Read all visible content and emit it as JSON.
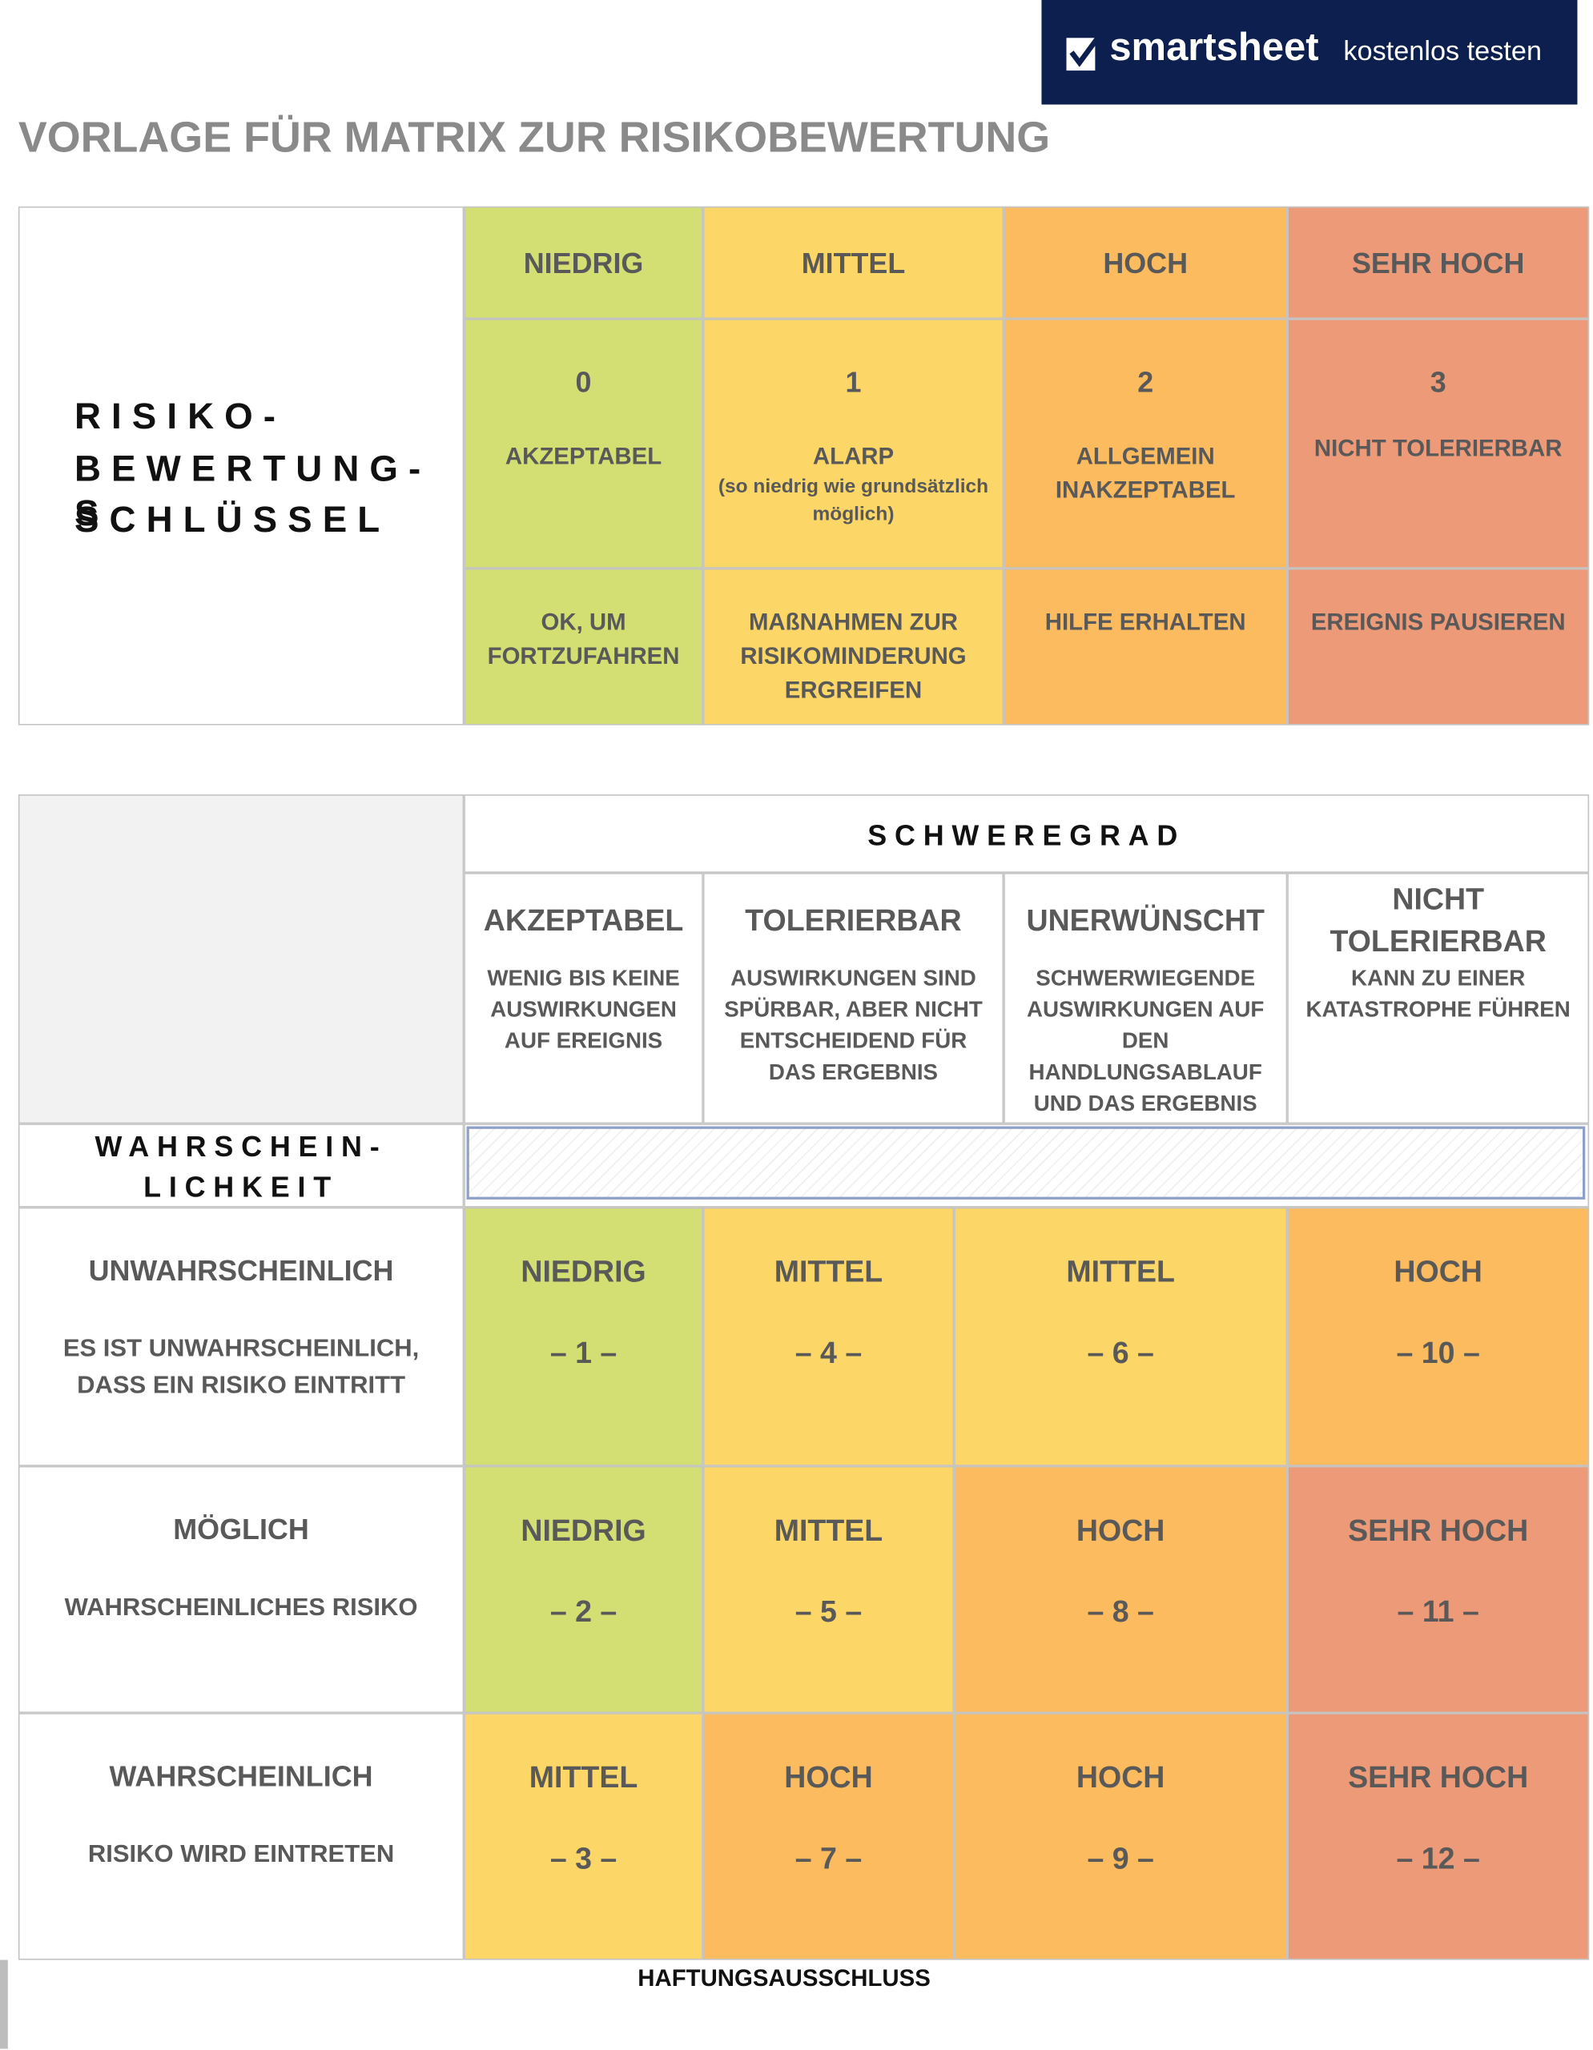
{
  "header": {
    "logo": {
      "brand": "smartsheet",
      "cta": "kostenlos testen"
    },
    "title": "VORLAGE FÜR MATRIX ZUR RISIKOBEWERTUNG"
  },
  "key_table": {
    "title_lines": [
      "RISIKO-",
      "BEWERTUNG-S",
      "SCHLÜSSEL"
    ],
    "columns": [
      {
        "level": "NIEDRIG",
        "score": 0,
        "rating": "AKZEPTABEL",
        "action": "OK, UM FORTZUFAHREN"
      },
      {
        "level": "MITTEL",
        "score": 1,
        "rating": "ALARP",
        "note": "(so niedrig wie grundsätzlich möglich)",
        "action": "MAßNAHMEN ZUR RISIKOMINDERUNG ERGREIFEN"
      },
      {
        "level": "HOCH",
        "score": 2,
        "rating": "ALLGEMEIN INAKZEPTABEL",
        "action": "HILFE ERHALTEN"
      },
      {
        "level": "SEHR HOCH",
        "score": 3,
        "rating": "NICHT TOLERIERBAR",
        "action": "EREIGNIS PAUSIEREN"
      }
    ]
  },
  "matrix": {
    "severity_title": "SCHWEREGRAD",
    "severity": [
      {
        "name": "AKZEPTABEL",
        "description": "WENIG BIS KEINE AUSWIRKUNGEN AUF EREIGNIS"
      },
      {
        "name": "TOLERIERBAR",
        "description": "AUSWIRKUNGEN SIND SPÜRBAR, ABER NICHT ENTSCHEIDEND FÜR DAS ERGEBNIS"
      },
      {
        "name": "UNERWÜNSCHT",
        "description": "SCHWERWIEGENDE AUSWIRKUNGEN AUF DEN HANDLUNGSABLAUF UND DAS ERGEBNIS"
      },
      {
        "name": "NICHT TOLERIERBAR",
        "description": "KANN ZU EINER KATASTROPHE FÜHREN"
      }
    ],
    "likelihood_title_lines": [
      "WAHRSCHEIN-",
      "LICHKEIT"
    ],
    "rows": [
      {
        "name": "UNWAHRSCHEINLICH",
        "description": "ES IST UNWAHRSCHEINLICH, DASS EIN RISIKO EINTRITT",
        "cells": [
          {
            "label": "NIEDRIG",
            "score": "– 1 –"
          },
          {
            "label": "MITTEL",
            "score": "– 4 –"
          },
          {
            "label": "MITTEL",
            "score": "– 6 –"
          },
          {
            "label": "HOCH",
            "score": "– 10 –"
          }
        ]
      },
      {
        "name": "MÖGLICH",
        "description": "WAHRSCHEINLICHES RISIKO",
        "cells": [
          {
            "label": "NIEDRIG",
            "score": "– 2 –"
          },
          {
            "label": "MITTEL",
            "score": "– 5 –"
          },
          {
            "label": "HOCH",
            "score": "– 8 –"
          },
          {
            "label": "SEHR HOCH",
            "score": "– 11 –"
          }
        ]
      },
      {
        "name": "WAHRSCHEINLICH",
        "description": "RISIKO WIRD EINTRETEN",
        "cells": [
          {
            "label": "MITTEL",
            "score": "– 3 –"
          },
          {
            "label": "HOCH",
            "score": "– 7 –"
          },
          {
            "label": "HOCH",
            "score": "– 9 –"
          },
          {
            "label": "SEHR HOCH",
            "score": "– 12 –"
          }
        ]
      }
    ]
  },
  "footer": "HAFTUNGSAUSSCHLUSS"
}
